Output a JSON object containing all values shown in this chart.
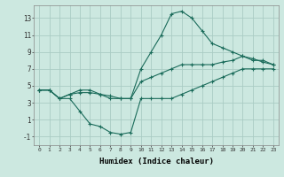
{
  "xlabel": "Humidex (Indice chaleur)",
  "background_color": "#cce8e0",
  "grid_color": "#aaccc4",
  "line_color": "#1a6b5a",
  "xlim": [
    -0.5,
    23.5
  ],
  "ylim": [
    -2,
    14.5
  ],
  "xticks": [
    0,
    1,
    2,
    3,
    4,
    5,
    6,
    7,
    8,
    9,
    10,
    11,
    12,
    13,
    14,
    15,
    16,
    17,
    18,
    19,
    20,
    21,
    22,
    23
  ],
  "yticks": [
    -1,
    1,
    3,
    5,
    7,
    9,
    11,
    13
  ],
  "line1_x": [
    0,
    1,
    2,
    3,
    4,
    5,
    6,
    7,
    8,
    9,
    10,
    11,
    12,
    13,
    14,
    15,
    16,
    17,
    18,
    19,
    20,
    21,
    22,
    23
  ],
  "line1_y": [
    4.5,
    4.5,
    3.5,
    4.0,
    4.5,
    4.5,
    4.0,
    3.5,
    3.5,
    3.5,
    7.0,
    9.0,
    11.0,
    13.5,
    13.8,
    13.0,
    11.5,
    10.0,
    9.5,
    9.0,
    8.5,
    8.0,
    8.0,
    7.5
  ],
  "line2_x": [
    0,
    1,
    2,
    3,
    4,
    5,
    6,
    7,
    8,
    9,
    10,
    11,
    12,
    13,
    14,
    15,
    16,
    17,
    18,
    19,
    20,
    21,
    22,
    23
  ],
  "line2_y": [
    4.5,
    4.5,
    3.5,
    4.0,
    4.2,
    4.2,
    4.0,
    3.8,
    3.5,
    3.5,
    5.5,
    6.0,
    6.5,
    7.0,
    7.5,
    7.5,
    7.5,
    7.5,
    7.8,
    8.0,
    8.5,
    8.2,
    7.8,
    7.5
  ],
  "line3_x": [
    0,
    1,
    2,
    3,
    4,
    5,
    6,
    7,
    8,
    9,
    10,
    11,
    12,
    13,
    14,
    15,
    16,
    17,
    18,
    19,
    20,
    21,
    22,
    23
  ],
  "line3_y": [
    4.5,
    4.5,
    3.5,
    3.5,
    2.0,
    0.5,
    0.2,
    -0.5,
    -0.7,
    -0.5,
    3.5,
    3.5,
    3.5,
    3.5,
    4.0,
    4.5,
    5.0,
    5.5,
    6.0,
    6.5,
    7.0,
    7.0,
    7.0,
    7.0
  ]
}
